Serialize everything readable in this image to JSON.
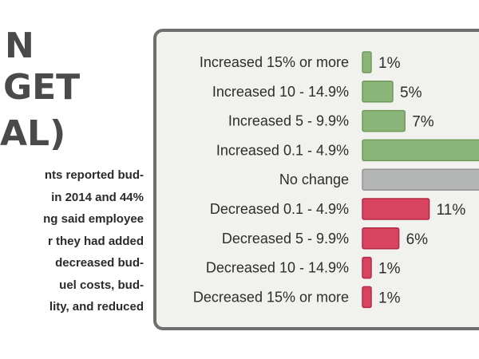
{
  "headline": {
    "line1": "N",
    "line2": "GET",
    "line3": "AL)"
  },
  "body_text": [
    "nts reported bud-",
    "in 2014 and 44%",
    "ng said employee",
    "r they had added",
    "decreased bud-",
    "uel costs, bud-",
    "lity, and reduced"
  ],
  "chart_data": {
    "type": "bar",
    "orientation": "horizontal",
    "categories": [
      "Increased 15% or more",
      "Increased 10 - 14.9%",
      "Increased 5 - 9.9%",
      "Increased 0.1 - 4.9%",
      "No change",
      "Decreased 0.1 - 4.9%",
      "Decreased 5 - 9.9%",
      "Decreased 10 - 14.9%",
      "Decreased 15% or more"
    ],
    "values": [
      1,
      5,
      7,
      null,
      null,
      11,
      6,
      1,
      1
    ],
    "value_labels": [
      "1%",
      "5%",
      "7%",
      "",
      "",
      "11%",
      "6%",
      "1%",
      "1%"
    ],
    "xlim": [
      0,
      100
    ],
    "grid": false,
    "legend": "none",
    "colors": {
      "increased": "#8cb57a",
      "increased_edge": "#6f9a5c",
      "no_change": "#b3b4b4",
      "no_change_edge": "#939494",
      "decreased": "#d8435f",
      "decreased_edge": "#b22c47",
      "panel_bg": "#f1f1ed",
      "panel_border": "#6f6f6f"
    }
  }
}
